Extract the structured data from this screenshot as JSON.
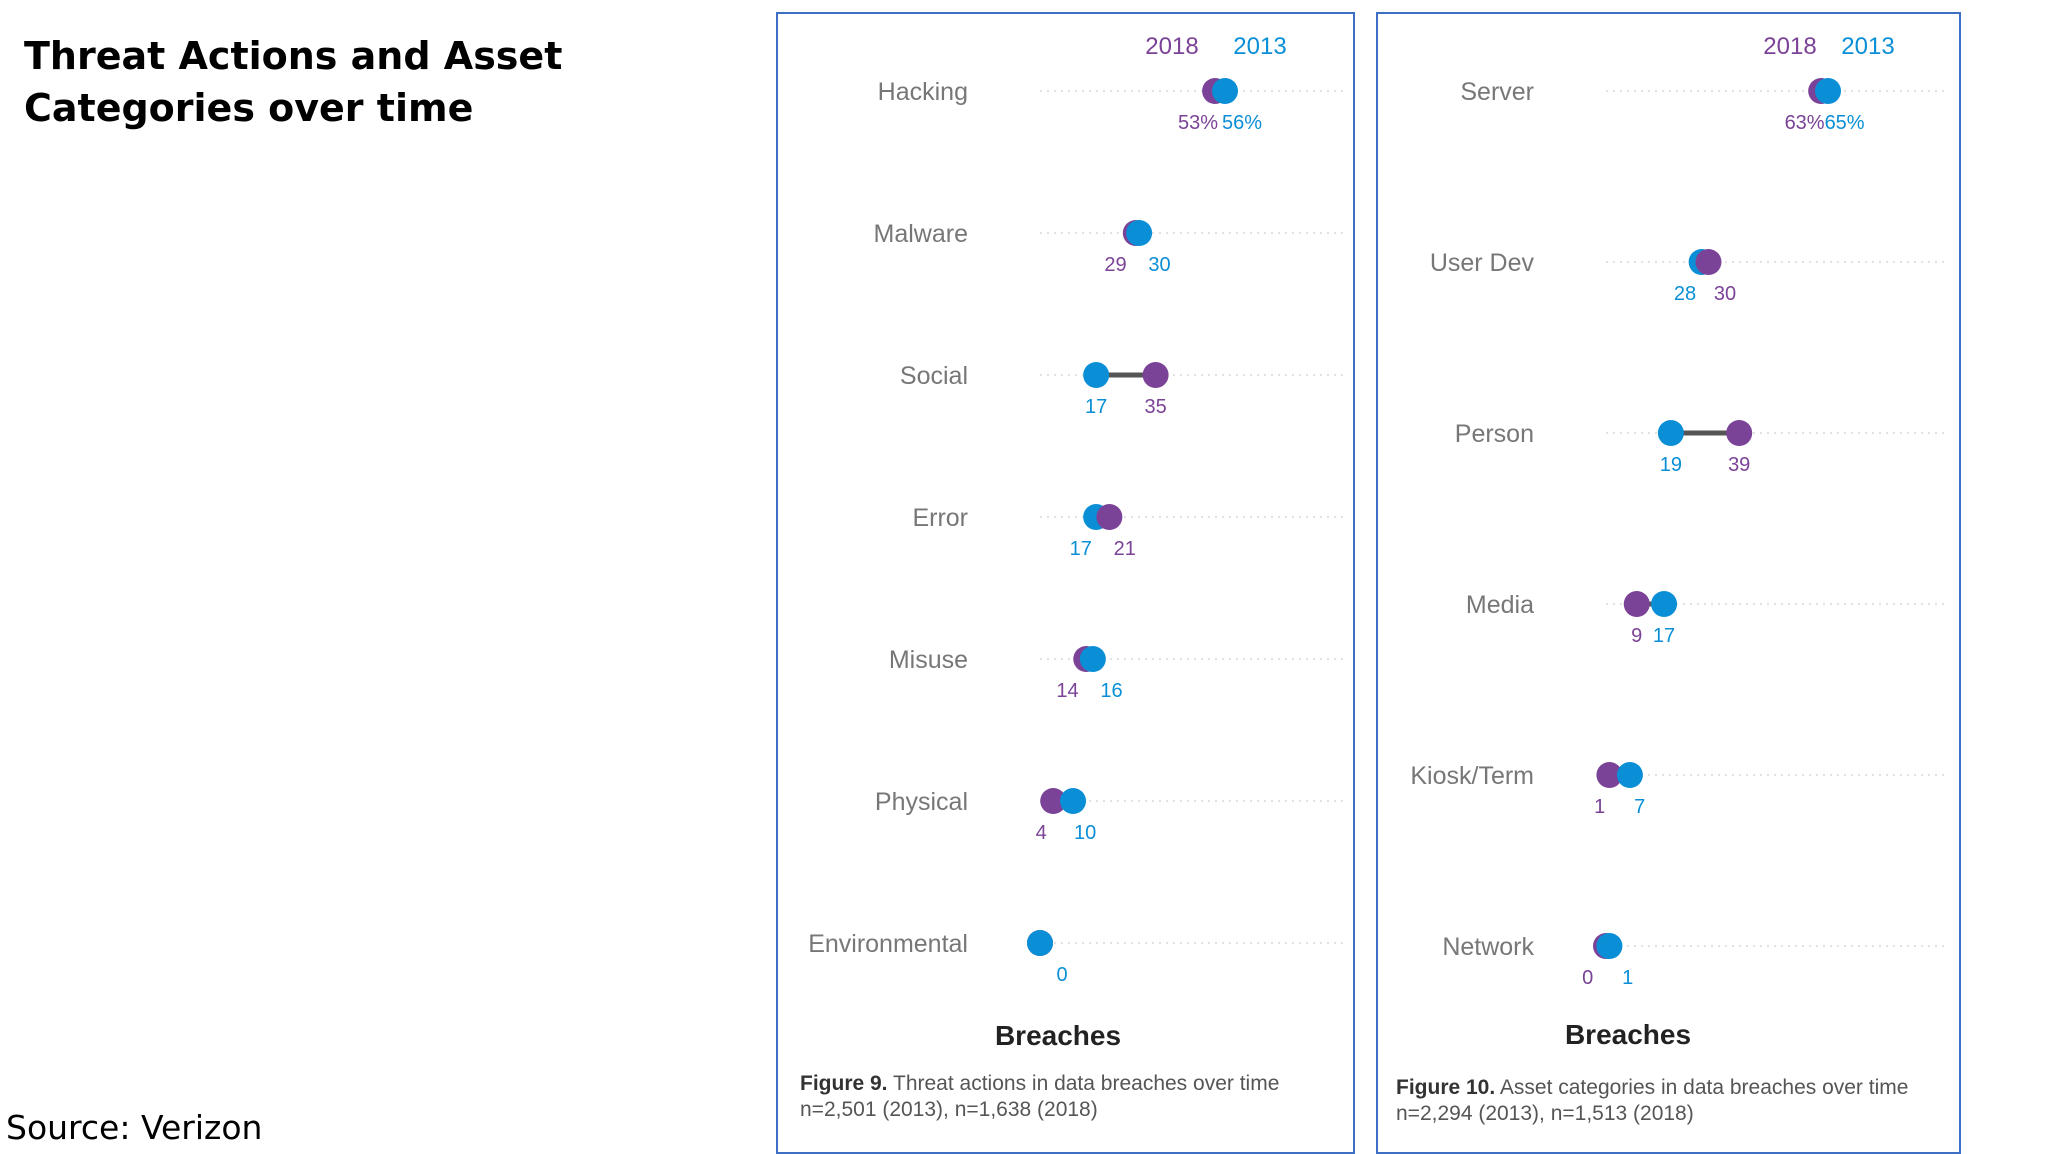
{
  "slide": {
    "title": "Threat Actions and Asset Categories over time",
    "source": "Source: Verizon"
  },
  "colors": {
    "y2018": "#7b4397",
    "y2013": "#0a8fd6",
    "category_label": "#777777",
    "gridline": "#e2e2e2",
    "connector": "#555555"
  },
  "chart_data": [
    {
      "type": "dumbbell",
      "legend": [
        "2018",
        "2013"
      ],
      "categories": [
        "Hacking",
        "Malware",
        "Social",
        "Error",
        "Misuse",
        "Physical",
        "Environmental"
      ],
      "series": [
        {
          "name": "2018",
          "values": [
            53,
            29,
            35,
            21,
            14,
            4,
            0
          ]
        },
        {
          "name": "2013",
          "values": [
            56,
            30,
            17,
            17,
            16,
            10,
            0
          ]
        }
      ],
      "value_labels": {
        "2018": [
          "53%",
          "29",
          "35",
          "21",
          "14",
          "4",
          ""
        ],
        "2013": [
          "56%",
          "30",
          "17",
          "17",
          "16",
          "10",
          "0"
        ]
      },
      "xlabel": "Breaches",
      "caption_bold": "Figure 9.",
      "caption_text": "Threat actions in data breaches over time",
      "caption_line2": "n=2,501 (2013), n=1,638 (2018)"
    },
    {
      "type": "dumbbell",
      "legend": [
        "2018",
        "2013"
      ],
      "categories": [
        "Server",
        "User Dev",
        "Person",
        "Media",
        "Kiosk/Term",
        "Network"
      ],
      "series": [
        {
          "name": "2018",
          "values": [
            63,
            30,
            39,
            9,
            1,
            0
          ]
        },
        {
          "name": "2013",
          "values": [
            65,
            28,
            19,
            17,
            7,
            1
          ]
        }
      ],
      "value_labels": {
        "2018": [
          "63%",
          "30",
          "39",
          "9",
          "1",
          "0"
        ],
        "2013": [
          "65%",
          "28",
          "19",
          "17",
          "7",
          "1"
        ]
      },
      "xlabel": "Breaches",
      "caption_bold": "Figure 10.",
      "caption_text": "Asset categories in data breaches over time",
      "caption_line2": "n=2,294 (2013), n=1,513 (2018)"
    }
  ]
}
